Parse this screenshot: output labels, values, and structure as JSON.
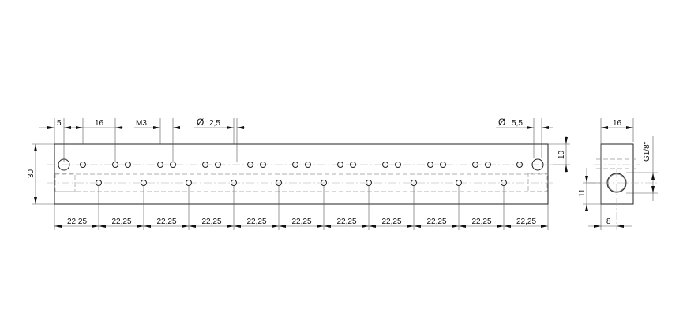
{
  "drawing": {
    "front_view": {
      "dims": {
        "edge_to_hole": "5",
        "hole_pitch": "16",
        "thread": "M3",
        "diameter_symbol": "Ø",
        "small_hole_diameter": "2,5",
        "large_hole_diameter": "5,5",
        "height": "30",
        "hole_row_offset": "10",
        "bottom_spacing": [
          "22,25",
          "22,25",
          "22,25",
          "22,25",
          "22,25",
          "22,25",
          "22,25",
          "22,25",
          "22,25",
          "22,25",
          "22,25"
        ]
      }
    },
    "side_view": {
      "dims": {
        "width": "16",
        "port_thread": "G1/8\"",
        "port_height": "11",
        "port_offset": "8"
      }
    }
  }
}
